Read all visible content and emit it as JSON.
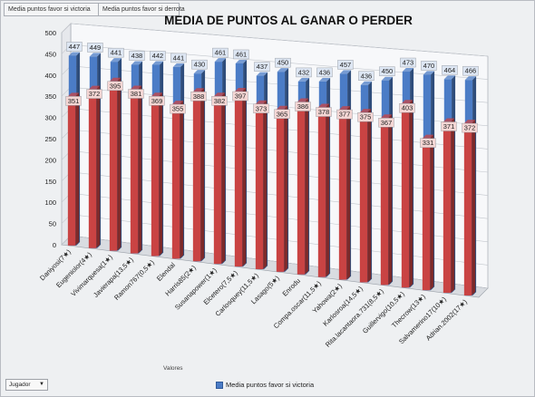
{
  "tabs": [
    "Media puntos favor si victoria",
    "Media puntos favor si derrota"
  ],
  "filter": {
    "label": "Jugador",
    "arrow": "▼"
  },
  "values_field": "Valores",
  "legend_label": "Media puntos favor si victoria",
  "colors": {
    "victoria": "#4b7cc6",
    "derrota": "#c94343",
    "label_bg_victoria": "#dde6f3",
    "label_bg_derrota": "#f4d6d4"
  },
  "chart_data": {
    "type": "bar",
    "title": "MEDIA DE PUNTOS AL GANAR O PERDER",
    "ylim": [
      0,
      500
    ],
    "yticks": [
      0,
      50,
      100,
      150,
      200,
      250,
      300,
      350,
      400,
      450,
      500
    ],
    "categories": [
      "Daniyosi(7★)",
      "Eugeniolor(4★)",
      "Vivimarquesa(1★)",
      "Javierapa(13,5★)",
      "Ramon767(0,5★)",
      "Elendal",
      "Harris85(2★)",
      "Susanapower(1★)",
      "Elcetero(7,5★)",
      "Carlosquey(11,5★)",
      "Lasago(5★)",
      "Enrodu",
      "Compa.oscar(11,5★)",
      "Yahowa(2★)",
      "Karlosroa(14,5★)",
      "Rita.lacantaora.731(8,5★)",
      "Guillervigo(10,5★)",
      "Thecrow(13★)",
      "Salvamerino17(10★)",
      "Adrian.2002(17★)"
    ],
    "series": [
      {
        "name": "Media puntos favor si victoria",
        "values": [
          447,
          449,
          441,
          438,
          442,
          441,
          430,
          461,
          461,
          437,
          450,
          432,
          436,
          457,
          436,
          450,
          473,
          470,
          464,
          466
        ]
      },
      {
        "values": [
          351,
          372,
          395,
          381,
          369,
          355,
          388,
          382,
          397,
          373,
          365,
          386,
          378,
          377,
          375,
          367,
          403,
          331,
          371,
          372
        ]
      }
    ]
  }
}
